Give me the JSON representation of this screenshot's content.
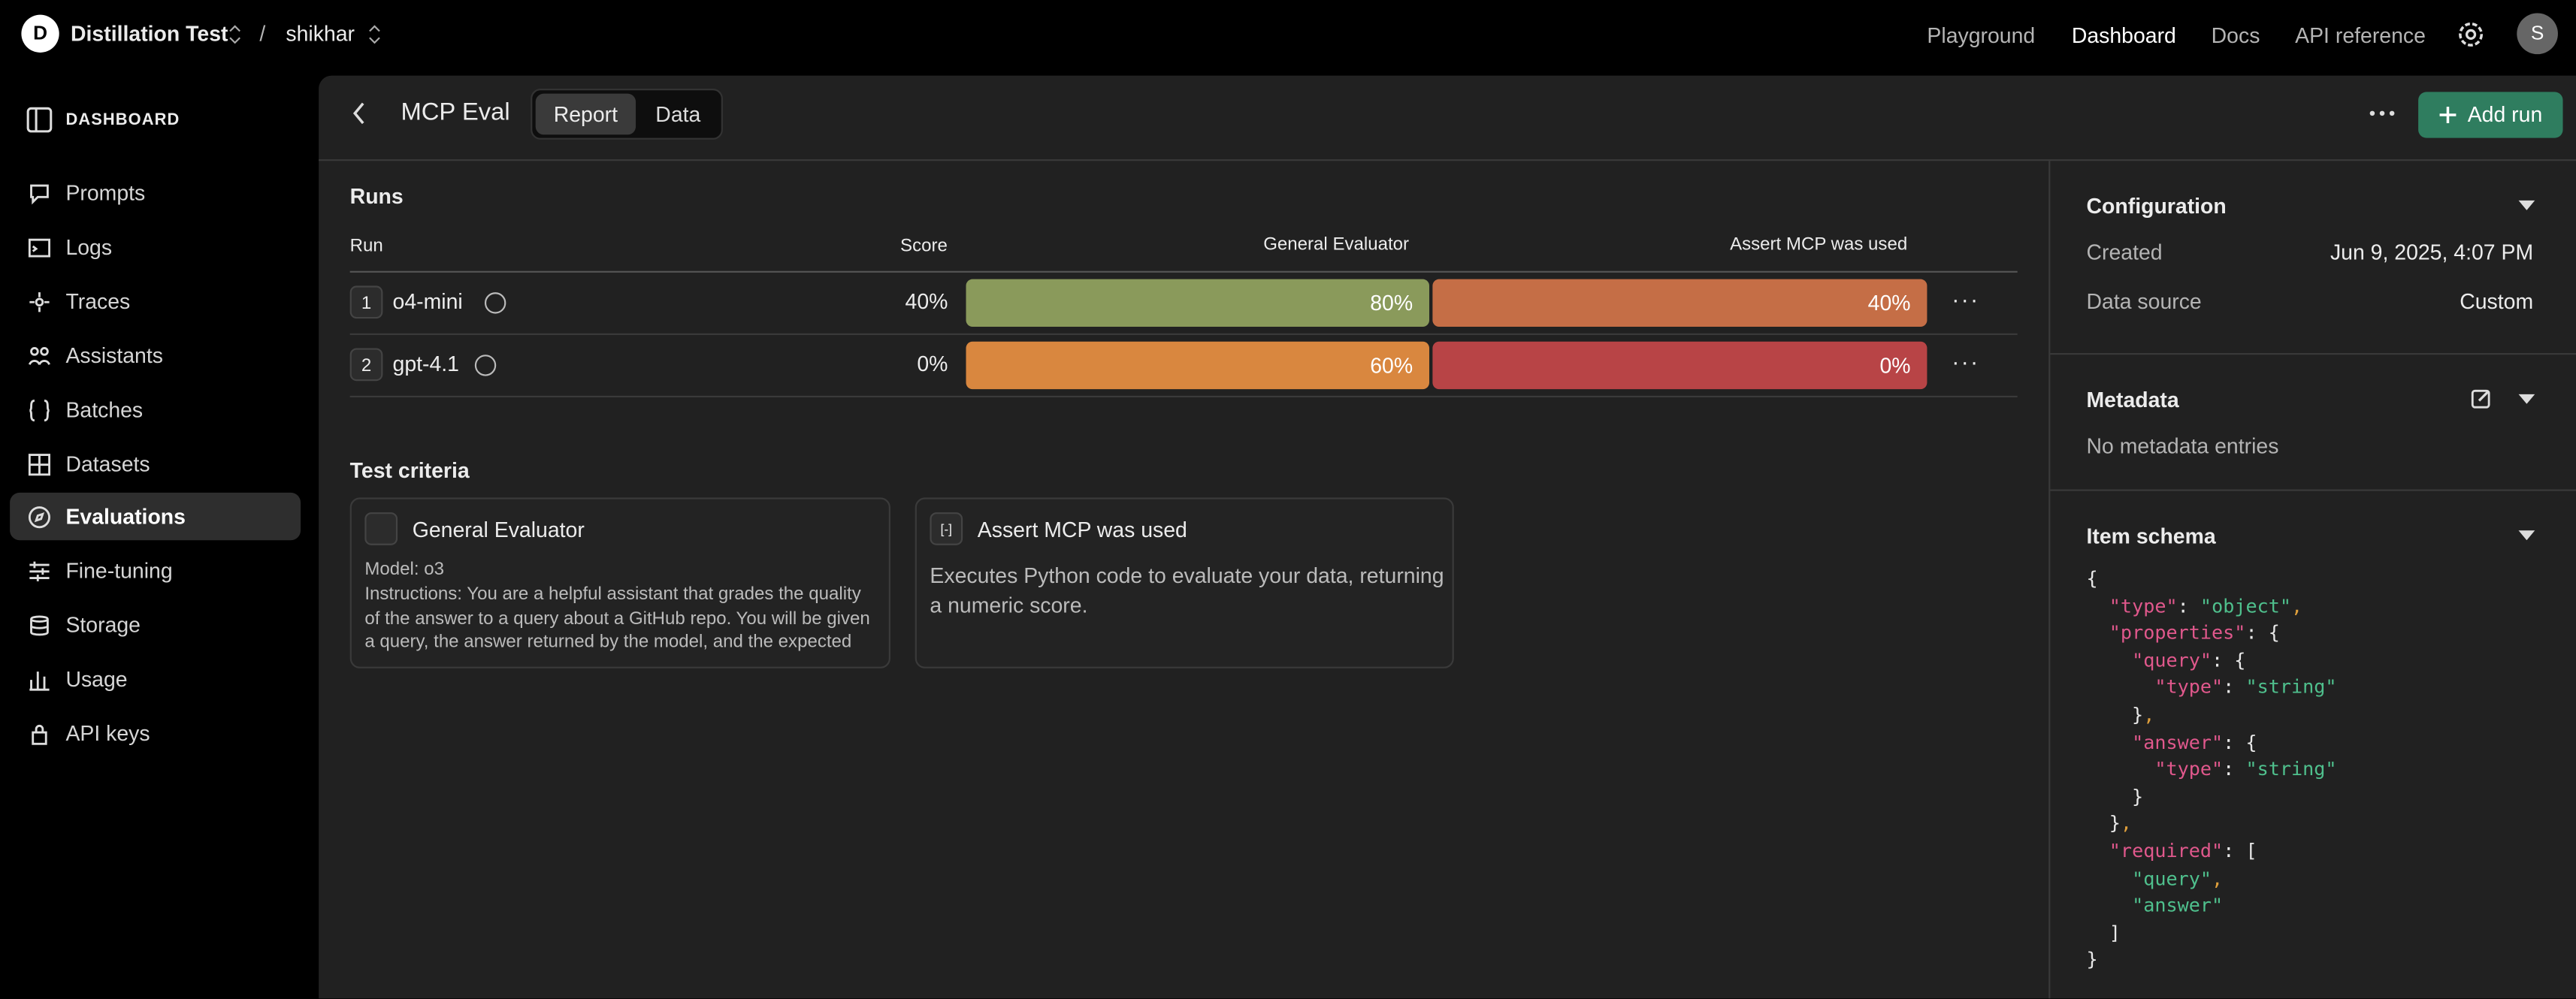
{
  "topbar": {
    "org_initial": "D",
    "org": "Distillation Test",
    "separator": "/",
    "project": "shikhar",
    "nav": [
      "Playground",
      "Dashboard",
      "Docs",
      "API reference"
    ],
    "user_initial": "S"
  },
  "sidebar": {
    "heading": "DASHBOARD",
    "items": [
      "Prompts",
      "Logs",
      "Traces",
      "Assistants",
      "Batches",
      "Datasets",
      "Evaluations",
      "Fine-tuning",
      "Storage",
      "Usage",
      "API keys"
    ]
  },
  "header": {
    "title": "MCP Eval",
    "tabs": [
      "Report",
      "Data"
    ],
    "add_run": "Add run"
  },
  "runs": {
    "heading": "Runs",
    "columns": [
      "Run",
      "Score",
      "General Evaluator",
      "Assert MCP was used"
    ],
    "rows": [
      {
        "index": "1",
        "name": "o4-mini",
        "score": "40%",
        "general": "80%",
        "assert": "40%"
      },
      {
        "index": "2",
        "name": "gpt-4.1",
        "score": "0%",
        "general": "60%",
        "assert": "0%"
      }
    ]
  },
  "test_criteria": {
    "heading": "Test criteria",
    "cards": [
      {
        "title": "General Evaluator",
        "lines": [
          "Model: o3",
          "Instructions: You are a helpful assistant that grades the quality of the answer to a query about a GitHub repo. You will be given a query, the answer returned by the model, and the expected"
        ]
      },
      {
        "title": "Assert MCP was used",
        "lines": [
          "Executes Python code to evaluate your data, returning a numeric score."
        ]
      }
    ]
  },
  "configuration": {
    "heading": "Configuration",
    "fields": [
      {
        "label": "Created",
        "value": "Jun 9, 2025, 4:07 PM"
      },
      {
        "label": "Data source",
        "value": "Custom"
      }
    ]
  },
  "metadata": {
    "heading": "Metadata",
    "empty": "No metadata entries"
  },
  "item_schema": {
    "heading": "Item schema",
    "code": [
      "{",
      "  \"type\": \"object\",",
      "  \"properties\": {",
      "    \"query\": {",
      "      \"type\": \"string\"",
      "    },",
      "    \"answer\": {",
      "      \"type\": \"string\"",
      "    }",
      "  },",
      "  \"required\": [",
      "    \"query\",",
      "    \"answer\"",
      "  ]",
      "}"
    ]
  }
}
